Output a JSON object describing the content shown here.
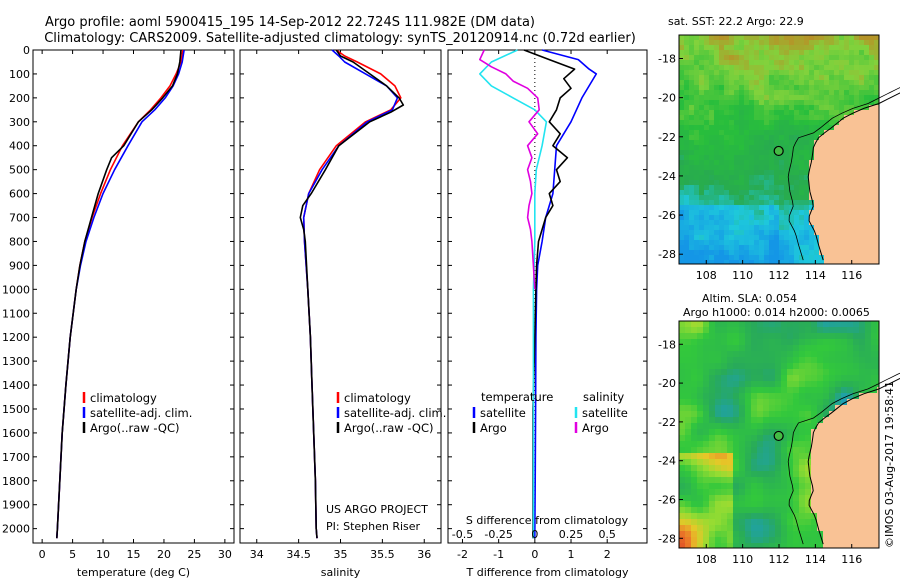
{
  "title_line1": "Argo profile: aoml 5900415_195 14-Sep-2012 22.724S 111.982E (DM data)",
  "title_line2": "Climatology: CARS2009. Satellite-adjusted climatology: synTS_20120914.nc (0.72d earlier)",
  "colors": {
    "climatology": "#ff0000",
    "satellite": "#0000ff",
    "argo": "#000000",
    "sat_salinity": "#22e4f0",
    "argo_salinity": "#e000e0",
    "land": "#f9c295",
    "frame": "#000000"
  },
  "credit": "US ARGO PROJECT",
  "pi": "PI: Stephen Riser",
  "imos_stamp": "©IMOS 03-Aug-2017 19:58:41",
  "sst_map": {
    "title": "sat. SST: 22.2  Argo: 22.9"
  },
  "sla_map": {
    "title1": "Altim. SLA: 0.054",
    "title2": "Argo h1000: 0.014 h2000: 0.0065"
  },
  "chart_data": [
    {
      "type": "line",
      "id": "temperature",
      "xlabel": "temperature (deg C)",
      "ylabel": "",
      "xlim": [
        -1.5,
        31.5
      ],
      "ylim": [
        2060,
        0
      ],
      "xticks": [
        0,
        5,
        10,
        15,
        20,
        25,
        30
      ],
      "yticks": [
        0,
        100,
        200,
        300,
        400,
        500,
        600,
        700,
        800,
        900,
        1000,
        1100,
        1200,
        1300,
        1400,
        1500,
        1600,
        1700,
        1800,
        1900,
        2000
      ],
      "legend": [
        "climatology",
        "satellite-adj. clim.",
        "Argo(..raw -QC)"
      ],
      "series": [
        {
          "name": "climatology",
          "color": "#ff0000",
          "depth": [
            0,
            50,
            100,
            150,
            200,
            250,
            300,
            400,
            500,
            600,
            700,
            800,
            900,
            1000,
            1200,
            1400,
            1600,
            1800,
            2000,
            2040
          ],
          "values": [
            23.1,
            22.8,
            22.0,
            21.0,
            19.5,
            17.8,
            15.8,
            13.2,
            11.2,
            9.6,
            8.2,
            7.0,
            6.2,
            5.6,
            4.6,
            3.9,
            3.3,
            2.9,
            2.5,
            2.4
          ]
        },
        {
          "name": "satellite-adj. clim.",
          "color": "#0000ff",
          "depth": [
            0,
            50,
            100,
            150,
            200,
            250,
            300,
            400,
            500,
            600,
            700,
            800,
            900,
            1000,
            1200,
            1400,
            1600,
            1800,
            2000,
            2040
          ],
          "values": [
            23.3,
            23.0,
            22.4,
            21.5,
            20.2,
            18.5,
            16.4,
            14.1,
            11.9,
            10.0,
            8.5,
            7.2,
            6.3,
            5.6,
            4.6,
            3.9,
            3.3,
            2.9,
            2.5,
            2.4
          ]
        },
        {
          "name": "Argo",
          "color": "#000000",
          "depth": [
            0,
            50,
            100,
            150,
            200,
            250,
            300,
            400,
            450,
            500,
            600,
            700,
            800,
            900,
            1000,
            1200,
            1400,
            1600,
            1800,
            2000,
            2040
          ],
          "values": [
            22.8,
            22.6,
            22.2,
            21.4,
            19.8,
            18.0,
            15.8,
            13.4,
            11.4,
            10.6,
            9.2,
            8.1,
            7.0,
            6.2,
            5.6,
            4.6,
            3.9,
            3.3,
            2.9,
            2.5,
            2.4
          ]
        }
      ]
    },
    {
      "type": "line",
      "id": "salinity",
      "xlabel": "salinity",
      "ylabel": "",
      "xlim": [
        33.8,
        36.2
      ],
      "ylim": [
        2060,
        0
      ],
      "xticks": [
        34,
        34.5,
        35,
        35.5,
        36
      ],
      "legend": [
        "climatology",
        "satellite-adj. clim.",
        "Argo(..raw -QC)"
      ],
      "series": [
        {
          "name": "climatology",
          "color": "#ff0000",
          "depth": [
            0,
            25,
            50,
            100,
            150,
            200,
            250,
            300,
            400,
            500,
            600,
            700,
            800,
            1000,
            1200,
            1400,
            1600,
            1800,
            2000,
            2040
          ],
          "values": [
            34.95,
            35.05,
            35.2,
            35.48,
            35.65,
            35.72,
            35.6,
            35.3,
            34.95,
            34.75,
            34.62,
            34.56,
            34.57,
            34.61,
            34.64,
            34.66,
            34.68,
            34.7,
            34.71,
            34.72
          ]
        },
        {
          "name": "satellite-adj. clim.",
          "color": "#0000ff",
          "depth": [
            0,
            25,
            50,
            100,
            150,
            200,
            250,
            300,
            400,
            500,
            600,
            700,
            800,
            1000,
            1200,
            1400,
            1600,
            1800,
            2000,
            2040
          ],
          "values": [
            34.9,
            34.98,
            35.05,
            35.3,
            35.55,
            35.68,
            35.62,
            35.32,
            34.98,
            34.78,
            34.62,
            34.56,
            34.57,
            34.61,
            34.64,
            34.66,
            34.68,
            34.7,
            34.71,
            34.72
          ]
        },
        {
          "name": "Argo",
          "color": "#000000",
          "depth": [
            0,
            25,
            50,
            100,
            150,
            200,
            230,
            260,
            300,
            400,
            500,
            600,
            650,
            700,
            750,
            800,
            1000,
            1200,
            1400,
            1600,
            1800,
            2000,
            2040
          ],
          "values": [
            34.95,
            35.0,
            35.15,
            35.35,
            35.55,
            35.7,
            35.75,
            35.6,
            35.35,
            34.98,
            34.82,
            34.65,
            34.55,
            34.52,
            34.56,
            34.58,
            34.61,
            34.64,
            34.66,
            34.68,
            34.7,
            34.71,
            34.72
          ]
        }
      ]
    },
    {
      "type": "line",
      "id": "difference",
      "xlabel_top": "S difference from climatology",
      "xlabel": "T difference from climatology",
      "xlim": [
        -2.4,
        3.1
      ],
      "ylim": [
        2060,
        0
      ],
      "xticks": [
        -2,
        -1,
        0,
        1,
        2
      ],
      "xticks_top": [
        -0.5,
        -0.25,
        0,
        0.25,
        0.5
      ],
      "legend_titles": [
        "temperature",
        "salinity"
      ],
      "legend": [
        "satellite",
        "Argo",
        "satellite",
        "Argo"
      ],
      "series": [
        {
          "name": "temperature satellite",
          "color": "#0000ff",
          "depth": [
            0,
            40,
            80,
            100,
            150,
            200,
            300,
            400,
            500,
            600,
            700,
            800,
            900,
            1000,
            1200,
            1500,
            1800,
            2040
          ],
          "values": [
            0.2,
            1.2,
            1.5,
            1.7,
            1.5,
            1.3,
            1.0,
            0.6,
            0.55,
            0.5,
            0.3,
            0.2,
            0.08,
            0.05,
            0.03,
            0.02,
            0.01,
            0.0
          ]
        },
        {
          "name": "temperature Argo",
          "color": "#000000",
          "depth": [
            0,
            40,
            80,
            120,
            160,
            200,
            250,
            300,
            350,
            400,
            450,
            500,
            550,
            600,
            650,
            700,
            750,
            800,
            900,
            1000,
            1200,
            1500,
            1800,
            2040
          ],
          "values": [
            -0.3,
            0.4,
            1.1,
            0.8,
            1.0,
            0.7,
            0.6,
            0.4,
            0.7,
            0.5,
            0.9,
            0.6,
            0.7,
            0.4,
            0.5,
            0.3,
            0.2,
            0.1,
            0.05,
            0.03,
            0.0,
            -0.05,
            -0.05,
            -0.05
          ]
        },
        {
          "name": "salinity satellite",
          "color": "#22e4f0",
          "depth": [
            0,
            50,
            100,
            150,
            200,
            250,
            300,
            400,
            500,
            600,
            700,
            800,
            900,
            1000,
            1200,
            1500,
            1800,
            2040
          ],
          "values": [
            -0.12,
            -0.3,
            -0.38,
            -0.3,
            -0.15,
            0.0,
            0.08,
            0.05,
            0.01,
            0.0,
            0.0,
            0.0,
            -0.005,
            -0.01,
            -0.01,
            -0.01,
            -0.01,
            -0.01
          ]
        },
        {
          "name": "salinity Argo",
          "color": "#e000e0",
          "depth": [
            0,
            40,
            70,
            100,
            130,
            160,
            200,
            250,
            300,
            350,
            400,
            450,
            500,
            550,
            600,
            650,
            700,
            750,
            800,
            900,
            1000
          ],
          "values": [
            -0.35,
            -0.38,
            -0.3,
            -0.2,
            -0.15,
            -0.05,
            0.02,
            0.03,
            -0.04,
            0.02,
            -0.05,
            -0.02,
            -0.05,
            -0.03,
            -0.02,
            -0.04,
            -0.05,
            -0.03,
            -0.02,
            -0.01,
            0.0
          ]
        }
      ]
    },
    {
      "type": "heatmap",
      "id": "sst_map",
      "title": "sat. SST: 22.2  Argo: 22.9",
      "xlim": [
        106.5,
        117.5
      ],
      "ylim": [
        -28.5,
        -16.8
      ],
      "xticks": [
        108,
        110,
        112,
        114,
        116
      ],
      "yticks": [
        -18,
        -20,
        -22,
        -24,
        -26,
        -28
      ],
      "argo_position": [
        111.982,
        -22.724
      ]
    },
    {
      "type": "heatmap",
      "id": "sla_map",
      "title": "Altim. SLA: 0.054",
      "xlim": [
        106.5,
        117.5
      ],
      "ylim": [
        -28.5,
        -16.8
      ],
      "xticks": [
        108,
        110,
        112,
        114,
        116
      ],
      "yticks": [
        -18,
        -20,
        -22,
        -24,
        -26,
        -28
      ],
      "argo_position": [
        111.982,
        -22.724
      ]
    }
  ]
}
